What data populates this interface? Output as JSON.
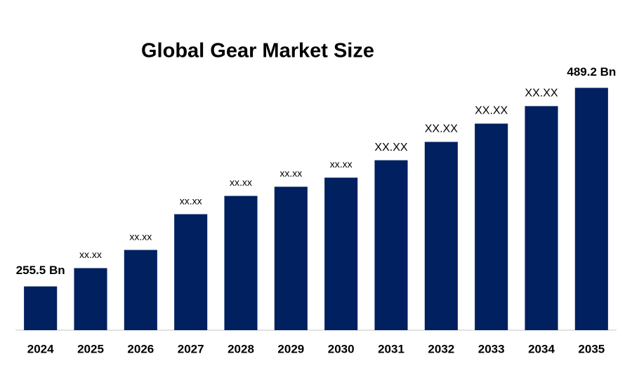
{
  "chart_data": {
    "type": "bar",
    "title": "Global Gear Market Size",
    "categories": [
      "2024",
      "2025",
      "2026",
      "2027",
      "2028",
      "2029",
      "2030",
      "2031",
      "2032",
      "2033",
      "2034",
      "2035"
    ],
    "values": [
      255.5,
      277,
      298.4,
      340.5,
      362,
      372.8,
      383.5,
      404,
      425.6,
      447.1,
      467.7,
      489.2
    ],
    "value_labels": [
      "255.5 Bn",
      "xx.xx",
      "xx.xx",
      "xx.xx",
      "xx.xx",
      "xx.xx",
      "xx.xx",
      "XX.XX",
      "XX.XX",
      "XX.XX",
      "XX.XX",
      "489.2 Bn"
    ],
    "color": "#002060",
    "ylim": [
      204,
      520
    ]
  }
}
